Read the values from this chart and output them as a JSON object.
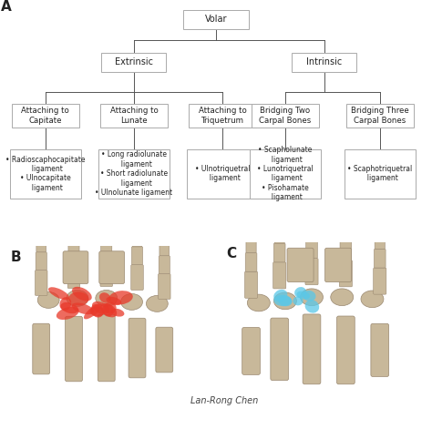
{
  "background_color": "#ffffff",
  "label_A": "A",
  "label_B": "B",
  "label_C": "C",
  "root_label": "Volar",
  "level1": [
    "Extrinsic",
    "Intrinsic"
  ],
  "level2": [
    "Attaching to\nCapitate",
    "Attaching to\nLunate",
    "Attaching to\nTriquetrum",
    "Bridging Two\nCarpal Bones",
    "Bridging Three\nCarpal Bones"
  ],
  "leaf_texts": [
    "• Radioscaphocapitate\n  ligament\n• Ulnocapitate\n  ligament",
    "• Long radiolunate\n  ligament\n• Short radiolunate\n  ligament\n• Ulnolunate ligament",
    "• Ulnotriquetral\n  ligament",
    "• Scapholunate\n  ligament\n• Lunotriquetral\n  ligament\n• Pisohamate\n  ligament",
    "• Scaphotriquetral\n  ligament"
  ],
  "watermark": "Lan-Rong Chen",
  "box_facecolor": "#ffffff",
  "box_edgecolor": "#aaaaaa",
  "line_color": "#555555",
  "text_color": "#222222",
  "font_size_root": 7,
  "font_size_level1": 7,
  "font_size_level2": 6.2,
  "font_size_leaf": 5.5
}
